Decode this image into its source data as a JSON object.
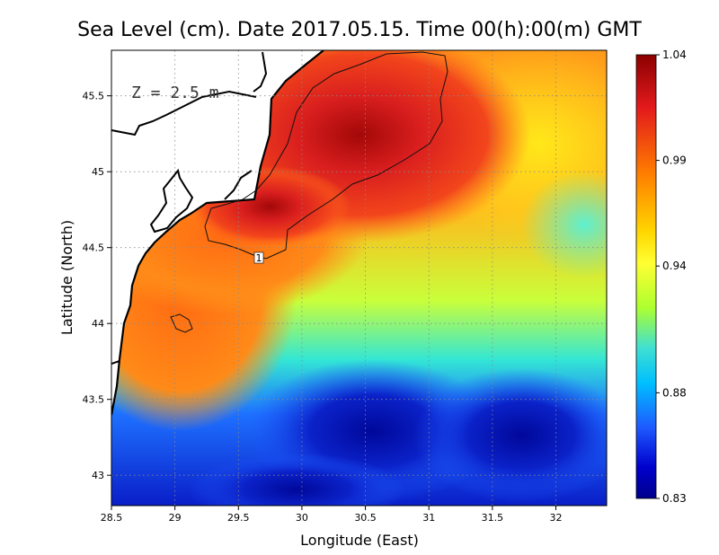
{
  "title": "Sea Level (cm). Date 2017.05.15. Time 00(h):00(m) GMT",
  "depth_label": "Z = 2.5 m",
  "contour_label": "1",
  "x_axis": {
    "label": "Longitude (East)",
    "range": [
      28.5,
      32.4
    ],
    "ticks": [
      "28.5",
      "29",
      "29.5",
      "30",
      "30.5",
      "31",
      "31.5",
      "32"
    ]
  },
  "y_axis": {
    "label": "Latitude (North)",
    "range": [
      42.8,
      45.8
    ],
    "ticks": [
      "43",
      "43.5",
      "44",
      "44.5",
      "45",
      "45.5"
    ]
  },
  "colorbar": {
    "range": [
      0.83,
      1.04
    ],
    "labels": [
      "1.04",
      "0.99",
      "0.94",
      "0.88",
      "0.83"
    ],
    "colors": [
      "#8b0000",
      "#e31a1c",
      "#ff7f00",
      "#ffd700",
      "#ffff33",
      "#adff2f",
      "#40e0d0",
      "#00bfff",
      "#1e5aff",
      "#0000cd",
      "#00008b"
    ]
  },
  "grid": "dotted",
  "land_color": "#ffffff",
  "coast_color": "#000000"
}
